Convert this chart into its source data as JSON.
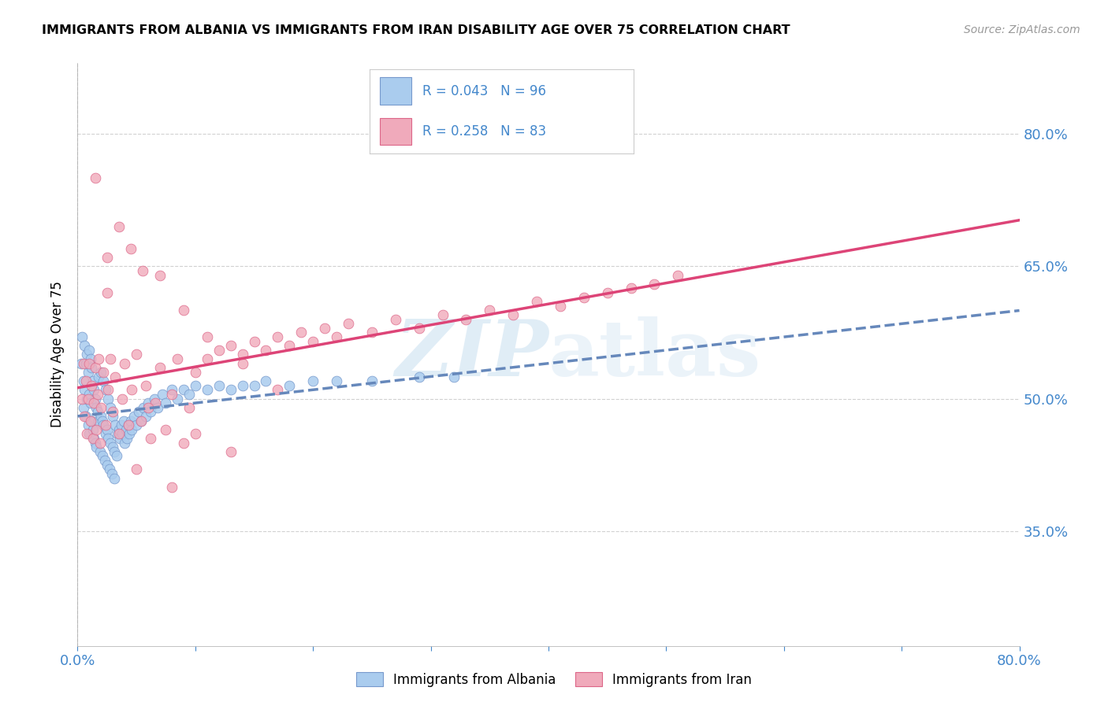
{
  "title": "IMMIGRANTS FROM ALBANIA VS IMMIGRANTS FROM IRAN DISABILITY AGE OVER 75 CORRELATION CHART",
  "source": "Source: ZipAtlas.com",
  "ylabel": "Disability Age Over 75",
  "xlim": [
    0.0,
    0.8
  ],
  "ylim": [
    0.22,
    0.88
  ],
  "yticks": [
    0.35,
    0.5,
    0.65,
    0.8
  ],
  "ytick_labels": [
    "35.0%",
    "50.0%",
    "65.0%",
    "80.0%"
  ],
  "xticks": [
    0.0,
    0.1,
    0.2,
    0.3,
    0.4,
    0.5,
    0.6,
    0.7,
    0.8
  ],
  "xtick_show": [
    0.0,
    0.8
  ],
  "xtick_show_labels": [
    "0.0%",
    "80.0%"
  ],
  "background_color": "#ffffff",
  "grid_color": "#cccccc",
  "watermark_zip": "ZIP",
  "watermark_atlas": "atlas",
  "albania_color": "#aaccee",
  "iran_color": "#f0aabb",
  "albania_edge_color": "#7799cc",
  "iran_edge_color": "#dd6688",
  "albania_line_color": "#6688bb",
  "iran_line_color": "#dd4477",
  "albania_R": 0.043,
  "albania_N": 96,
  "iran_R": 0.258,
  "iran_N": 83,
  "label_color": "#4488cc",
  "albania_label": "Immigrants from Albania",
  "iran_label": "Immigrants from Iran",
  "albania_x": [
    0.003,
    0.004,
    0.005,
    0.005,
    0.006,
    0.006,
    0.007,
    0.007,
    0.008,
    0.008,
    0.009,
    0.009,
    0.01,
    0.01,
    0.01,
    0.011,
    0.011,
    0.012,
    0.012,
    0.013,
    0.013,
    0.014,
    0.014,
    0.015,
    0.015,
    0.016,
    0.016,
    0.017,
    0.018,
    0.018,
    0.019,
    0.02,
    0.02,
    0.021,
    0.021,
    0.022,
    0.022,
    0.023,
    0.024,
    0.024,
    0.025,
    0.025,
    0.026,
    0.026,
    0.027,
    0.028,
    0.028,
    0.029,
    0.03,
    0.03,
    0.031,
    0.031,
    0.032,
    0.033,
    0.034,
    0.035,
    0.036,
    0.037,
    0.038,
    0.039,
    0.04,
    0.041,
    0.042,
    0.043,
    0.044,
    0.045,
    0.046,
    0.048,
    0.05,
    0.052,
    0.054,
    0.056,
    0.058,
    0.06,
    0.062,
    0.065,
    0.068,
    0.072,
    0.075,
    0.08,
    0.085,
    0.09,
    0.095,
    0.1,
    0.11,
    0.12,
    0.13,
    0.14,
    0.15,
    0.16,
    0.18,
    0.2,
    0.22,
    0.25,
    0.29,
    0.32
  ],
  "albania_y": [
    0.54,
    0.57,
    0.52,
    0.49,
    0.56,
    0.51,
    0.54,
    0.48,
    0.55,
    0.5,
    0.53,
    0.47,
    0.555,
    0.505,
    0.46,
    0.545,
    0.495,
    0.535,
    0.475,
    0.52,
    0.465,
    0.51,
    0.455,
    0.5,
    0.45,
    0.49,
    0.445,
    0.485,
    0.475,
    0.525,
    0.44,
    0.48,
    0.53,
    0.435,
    0.475,
    0.47,
    0.52,
    0.43,
    0.46,
    0.51,
    0.465,
    0.425,
    0.455,
    0.5,
    0.42,
    0.45,
    0.49,
    0.415,
    0.445,
    0.48,
    0.41,
    0.44,
    0.47,
    0.435,
    0.46,
    0.465,
    0.455,
    0.47,
    0.46,
    0.475,
    0.45,
    0.465,
    0.455,
    0.47,
    0.46,
    0.475,
    0.465,
    0.48,
    0.47,
    0.485,
    0.475,
    0.49,
    0.48,
    0.495,
    0.485,
    0.5,
    0.49,
    0.505,
    0.495,
    0.51,
    0.5,
    0.51,
    0.505,
    0.515,
    0.51,
    0.515,
    0.51,
    0.515,
    0.515,
    0.52,
    0.515,
    0.52,
    0.52,
    0.52,
    0.525,
    0.525
  ],
  "iran_x": [
    0.004,
    0.005,
    0.006,
    0.007,
    0.008,
    0.009,
    0.01,
    0.011,
    0.012,
    0.013,
    0.014,
    0.015,
    0.016,
    0.017,
    0.018,
    0.019,
    0.02,
    0.022,
    0.024,
    0.026,
    0.028,
    0.03,
    0.032,
    0.035,
    0.038,
    0.04,
    0.043,
    0.046,
    0.05,
    0.054,
    0.058,
    0.062,
    0.066,
    0.07,
    0.075,
    0.08,
    0.085,
    0.09,
    0.095,
    0.1,
    0.11,
    0.12,
    0.13,
    0.14,
    0.15,
    0.16,
    0.17,
    0.18,
    0.19,
    0.2,
    0.21,
    0.22,
    0.23,
    0.25,
    0.27,
    0.29,
    0.31,
    0.33,
    0.35,
    0.37,
    0.39,
    0.41,
    0.43,
    0.45,
    0.47,
    0.49,
    0.51,
    0.015,
    0.025,
    0.035,
    0.045,
    0.055,
    0.07,
    0.09,
    0.11,
    0.14,
    0.17,
    0.025,
    0.06,
    0.1,
    0.13,
    0.05,
    0.08
  ],
  "iran_y": [
    0.5,
    0.54,
    0.48,
    0.52,
    0.46,
    0.5,
    0.54,
    0.475,
    0.515,
    0.455,
    0.495,
    0.535,
    0.465,
    0.505,
    0.545,
    0.45,
    0.49,
    0.53,
    0.47,
    0.51,
    0.545,
    0.485,
    0.525,
    0.46,
    0.5,
    0.54,
    0.47,
    0.51,
    0.55,
    0.475,
    0.515,
    0.455,
    0.495,
    0.535,
    0.465,
    0.505,
    0.545,
    0.45,
    0.49,
    0.53,
    0.545,
    0.555,
    0.56,
    0.55,
    0.565,
    0.555,
    0.57,
    0.56,
    0.575,
    0.565,
    0.58,
    0.57,
    0.585,
    0.575,
    0.59,
    0.58,
    0.595,
    0.59,
    0.6,
    0.595,
    0.61,
    0.605,
    0.615,
    0.62,
    0.625,
    0.63,
    0.64,
    0.75,
    0.62,
    0.695,
    0.67,
    0.645,
    0.64,
    0.6,
    0.57,
    0.54,
    0.51,
    0.66,
    0.49,
    0.46,
    0.44,
    0.42,
    0.4
  ]
}
